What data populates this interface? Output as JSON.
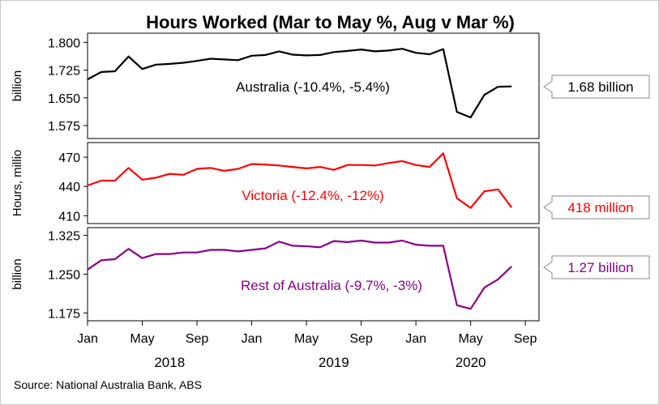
{
  "title": "Hours Worked (Mar to May %, Aug v Mar %)",
  "source": "Source: National Australia Bank, ABS",
  "chart_data": [
    {
      "type": "line",
      "panel": "top",
      "series_name": "Australia (-10.4%, -5.4%)",
      "ylabel": "billion",
      "ylim": [
        1.54,
        1.825
      ],
      "yticks": [
        1.575,
        1.65,
        1.725,
        1.8
      ],
      "ytick_labels": [
        "1.575",
        "1.650",
        "1.725",
        "1.800"
      ],
      "end_label": "1.68 billion",
      "color": "#000000",
      "values": [
        1.7,
        1.72,
        1.722,
        1.762,
        1.728,
        1.74,
        1.742,
        1.745,
        1.75,
        1.756,
        1.754,
        1.752,
        1.764,
        1.766,
        1.776,
        1.767,
        1.765,
        1.766,
        1.774,
        1.777,
        1.781,
        1.776,
        1.778,
        1.783,
        1.772,
        1.768,
        1.782,
        1.612,
        1.597,
        1.658,
        1.68,
        1.681
      ]
    },
    {
      "type": "line",
      "panel": "middle",
      "series_name": "Victoria (-12.4%, -12%)",
      "ylabel": "Hours, millio",
      "ylim": [
        402,
        485
      ],
      "yticks": [
        410,
        440,
        470
      ],
      "ytick_labels": [
        "410",
        "440",
        "470"
      ],
      "end_label": "418 million",
      "color": "#ff0000",
      "values": [
        441,
        446,
        446,
        459,
        447,
        449,
        453,
        452,
        458,
        459,
        456,
        458,
        463,
        462.5,
        461.5,
        460,
        458.5,
        460,
        457,
        462,
        462,
        461.5,
        464,
        466,
        462,
        460,
        474,
        428,
        418,
        435,
        437,
        418.5
      ]
    },
    {
      "type": "line",
      "panel": "bottom",
      "series_name": "Rest of Australia (-9.7%, -3%)",
      "ylabel": "billion",
      "ylim": [
        1.16,
        1.34
      ],
      "yticks": [
        1.175,
        1.25,
        1.325
      ],
      "ytick_labels": [
        "1.175",
        "1.250",
        "1.325"
      ],
      "end_label": "1.27 billion",
      "color": "#8b008b",
      "values": [
        1.259,
        1.277,
        1.279,
        1.299,
        1.281,
        1.289,
        1.289,
        1.292,
        1.292,
        1.297,
        1.297,
        1.294,
        1.297,
        1.3,
        1.313,
        1.305,
        1.304,
        1.302,
        1.314,
        1.312,
        1.315,
        1.311,
        1.311,
        1.315,
        1.307,
        1.305,
        1.305,
        1.19,
        1.183,
        1.224,
        1.24,
        1.265
      ]
    }
  ],
  "x_axis": {
    "start": "2018-01",
    "tick_labels": [
      "Jan",
      "May",
      "Sep",
      "Jan",
      "May",
      "Sep",
      "Jan",
      "May",
      "Sep"
    ],
    "tick_index": [
      0,
      4,
      8,
      12,
      16,
      20,
      24,
      28,
      32
    ],
    "year_labels": [
      "2018",
      "2019",
      "2020"
    ],
    "year_center_index": [
      6,
      18,
      28
    ]
  }
}
